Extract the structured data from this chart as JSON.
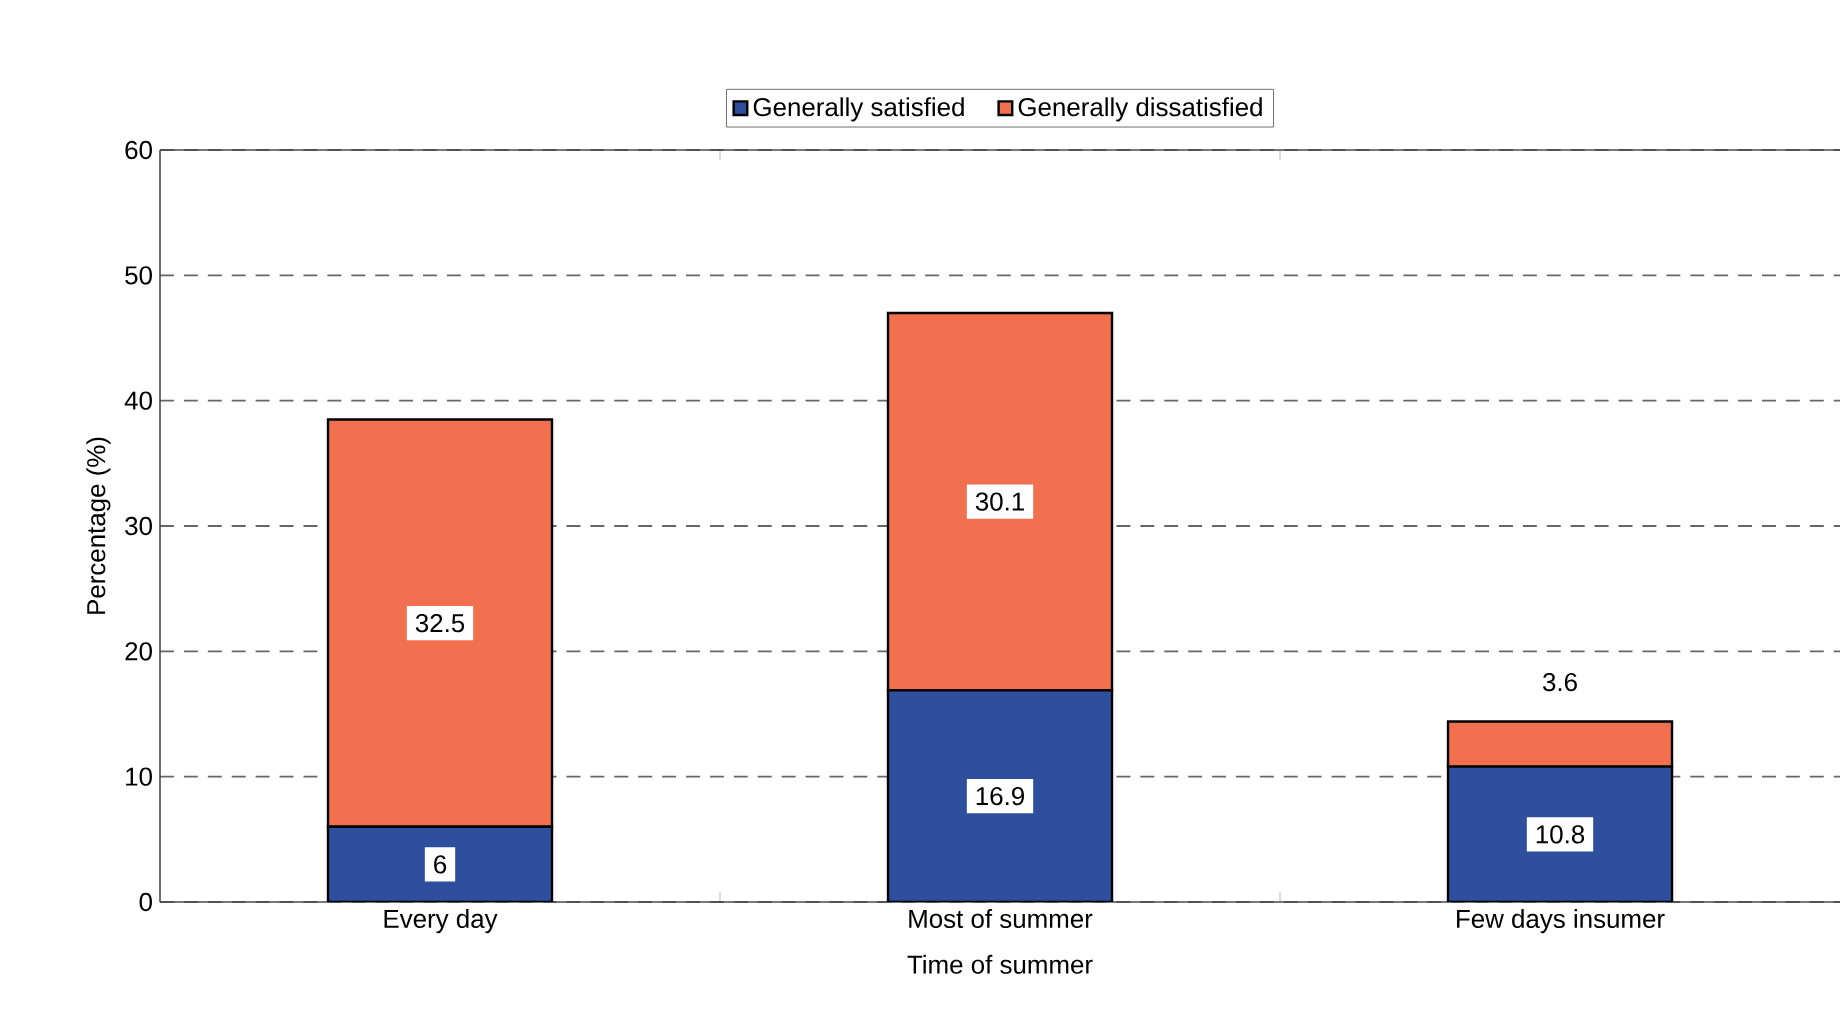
{
  "chart_data": {
    "type": "bar",
    "stacked": true,
    "xlabel": "Time of summer",
    "ylabel": "Percentage (%)",
    "categories": [
      "Every day",
      "Most of summer",
      "Few days insumer"
    ],
    "series": [
      {
        "name": "Generally satisfied",
        "color": "#2e4f9e",
        "values": [
          6,
          16.9,
          10.8
        ]
      },
      {
        "name": "Generally dissatisfied",
        "color": "#f07050",
        "values": [
          32.5,
          30.1,
          3.6
        ]
      }
    ],
    "ylim": [
      0,
      60
    ],
    "yticks": [
      0,
      10,
      20,
      30,
      40,
      50,
      60
    ],
    "grid": "y",
    "legend": "top",
    "data_labels": true
  }
}
